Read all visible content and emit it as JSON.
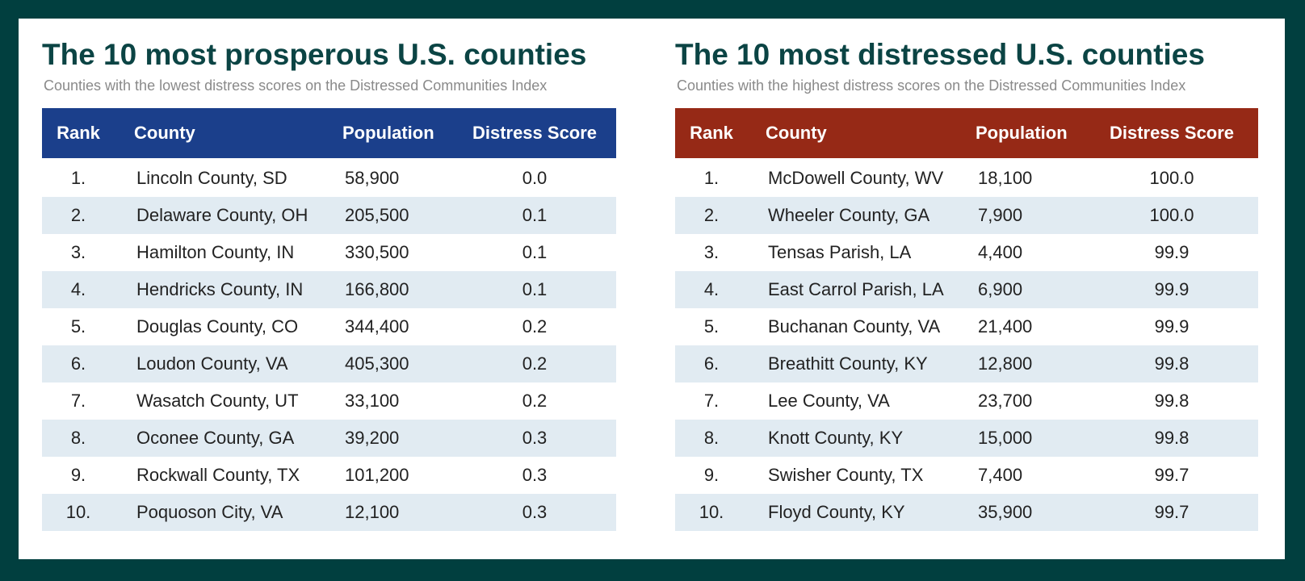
{
  "tables": [
    {
      "title": "The 10 most prosperous U.S. counties",
      "subtitle": "Counties with the lowest distress scores on the Distressed Communities Index",
      "header": [
        "Rank",
        "County",
        "Population",
        "Distress Score"
      ],
      "rows": [
        [
          "1.",
          "Lincoln County, SD",
          "58,900",
          "0.0"
        ],
        [
          "2.",
          "Delaware County, OH",
          "205,500",
          "0.1"
        ],
        [
          "3.",
          "Hamilton County, IN",
          "330,500",
          "0.1"
        ],
        [
          "4.",
          "Hendricks County, IN",
          "166,800",
          "0.1"
        ],
        [
          "5.",
          "Douglas County, CO",
          "344,400",
          "0.2"
        ],
        [
          "6.",
          "Loudon County, VA",
          "405,300",
          "0.2"
        ],
        [
          "7.",
          "Wasatch County, UT",
          "33,100",
          "0.2"
        ],
        [
          "8.",
          "Oconee County, GA",
          "39,200",
          "0.3"
        ],
        [
          "9.",
          "Rockwall County, TX",
          "101,200",
          "0.3"
        ],
        [
          "10.",
          "Poquoson City, VA",
          "12,100",
          "0.3"
        ]
      ]
    },
    {
      "title": "The 10 most distressed U.S. counties",
      "subtitle": "Counties with the highest distress scores on the Distressed Communities Index",
      "header": [
        "Rank",
        "County",
        "Population",
        "Distress Score"
      ],
      "rows": [
        [
          "1.",
          "McDowell County, WV",
          "18,100",
          "100.0"
        ],
        [
          "2.",
          "Wheeler County, GA",
          "7,900",
          "100.0"
        ],
        [
          "3.",
          "Tensas Parish, LA",
          "4,400",
          "99.9"
        ],
        [
          "4.",
          "East Carrol Parish, LA",
          "6,900",
          "99.9"
        ],
        [
          "5.",
          "Buchanan County, VA",
          "21,400",
          "99.9"
        ],
        [
          "6.",
          "Breathitt County, KY",
          "12,800",
          "99.8"
        ],
        [
          "7.",
          "Lee County, VA",
          "23,700",
          "99.8"
        ],
        [
          "8.",
          "Knott County, KY",
          "15,000",
          "99.8"
        ],
        [
          "9.",
          "Swisher County, TX",
          "7,400",
          "99.7"
        ],
        [
          "10.",
          "Floyd County, KY",
          "35,900",
          "99.7"
        ]
      ]
    }
  ]
}
